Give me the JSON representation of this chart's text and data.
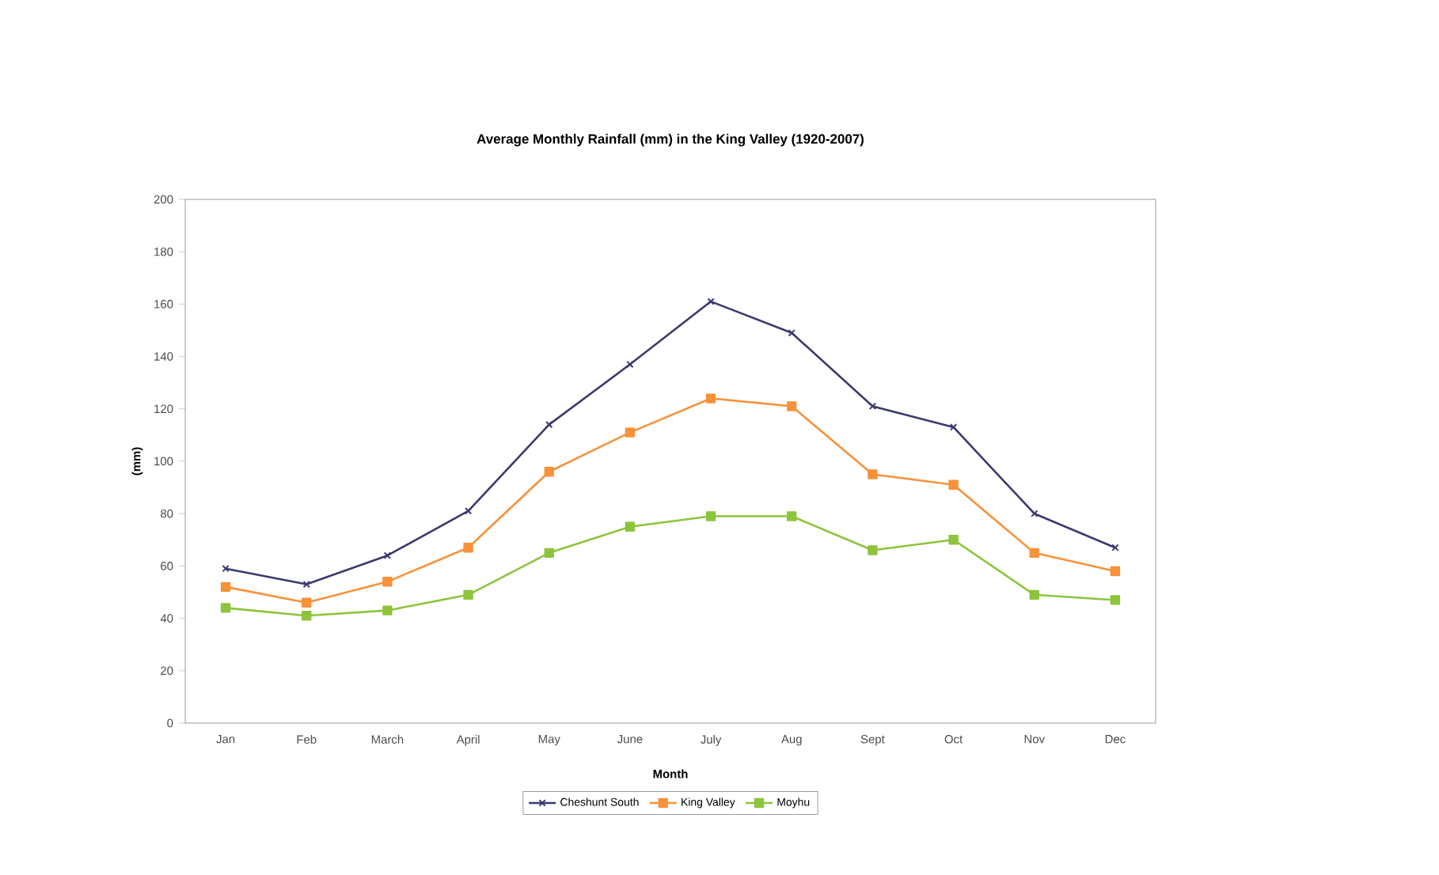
{
  "chart_data": {
    "type": "line",
    "title": "Average Monthly Rainfall (mm) in the King Valley (1920-2007)",
    "xlabel": "Month",
    "ylabel": "(mm)",
    "categories": [
      "Jan",
      "Feb",
      "March",
      "April",
      "May",
      "June",
      "July",
      "Aug",
      "Sept",
      "Oct",
      "Nov",
      "Dec"
    ],
    "series": [
      {
        "name": "Cheshunt South",
        "color": "#3a3a6e",
        "marker": "cross",
        "values": [
          59,
          53,
          64,
          81,
          114,
          137,
          161,
          149,
          121,
          113,
          80,
          67
        ]
      },
      {
        "name": "King Valley",
        "color": "#f7923a",
        "marker": "square",
        "values": [
          52,
          46,
          54,
          67,
          96,
          111,
          124,
          121,
          95,
          91,
          65,
          58
        ]
      },
      {
        "name": "Moyhu",
        "color": "#8dc43c",
        "marker": "square",
        "values": [
          44,
          41,
          43,
          49,
          65,
          75,
          79,
          79,
          66,
          70,
          49,
          47
        ]
      }
    ],
    "ylim": [
      0,
      200
    ],
    "yticks": [
      0,
      20,
      40,
      60,
      80,
      100,
      120,
      140,
      160,
      180,
      200
    ],
    "grid": false,
    "legend": "bottom",
    "line_style": "solid"
  }
}
